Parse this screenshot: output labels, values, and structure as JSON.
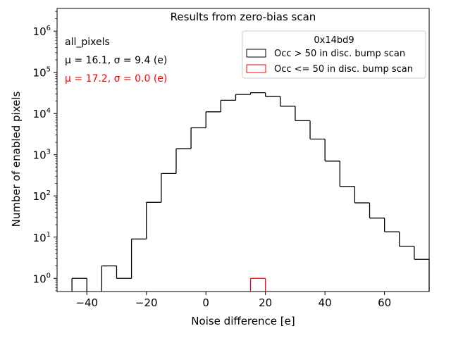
{
  "chart_data": {
    "type": "histogram",
    "title": "Results from zero-bias scan",
    "xlabel": "Noise difference [e]",
    "ylabel": "Number of enabled pixels",
    "xlim": [
      -50,
      75
    ],
    "ylim_log10": [
      -0.32,
      6.55
    ],
    "yscale": "log",
    "x_ticks": [
      -40,
      -20,
      0,
      20,
      40,
      60
    ],
    "x_tick_labels": [
      "−40",
      "−20",
      "0",
      "20",
      "40",
      "60"
    ],
    "y_ticks_exp": [
      0,
      1,
      2,
      3,
      4,
      5,
      6
    ],
    "y_tick_base": "10",
    "annotations": [
      {
        "text": "all_pixels",
        "color": "#000000"
      },
      {
        "text": "μ = 16.1, σ = 9.4 (e)",
        "color": "#000000"
      },
      {
        "text": "μ = 17.2, σ = 0.0 (e)",
        "color": "#ff0000"
      }
    ],
    "legend": {
      "title": "0x14bd9",
      "placement": "top-right",
      "entries": [
        "Occ > 50 in disc. bump scan",
        "Occ <= 50 in disc. bump scan"
      ]
    },
    "series": [
      {
        "name": "Occ > 50 in disc. bump scan",
        "color": "#000000",
        "bins": [
          {
            "x0": -45,
            "x1": -40,
            "value": 1
          },
          {
            "x0": -40,
            "x1": -35,
            "value": 0
          },
          {
            "x0": -35,
            "x1": -30,
            "value": 2
          },
          {
            "x0": -30,
            "x1": -25,
            "value": 1
          },
          {
            "x0": -25,
            "x1": -20,
            "value": 9
          },
          {
            "x0": -20,
            "x1": -15,
            "value": 70
          },
          {
            "x0": -15,
            "x1": -10,
            "value": 350
          },
          {
            "x0": -10,
            "x1": -5,
            "value": 1400
          },
          {
            "x0": -5,
            "x1": 0,
            "value": 4500
          },
          {
            "x0": 0,
            "x1": 5,
            "value": 11000
          },
          {
            "x0": 5,
            "x1": 10,
            "value": 21000
          },
          {
            "x0": 10,
            "x1": 15,
            "value": 29000
          },
          {
            "x0": 15,
            "x1": 20,
            "value": 32000
          },
          {
            "x0": 20,
            "x1": 25,
            "value": 26000
          },
          {
            "x0": 25,
            "x1": 30,
            "value": 15000
          },
          {
            "x0": 30,
            "x1": 35,
            "value": 6700
          },
          {
            "x0": 35,
            "x1": 40,
            "value": 2400
          },
          {
            "x0": 40,
            "x1": 45,
            "value": 700
          },
          {
            "x0": 45,
            "x1": 50,
            "value": 170
          },
          {
            "x0": 50,
            "x1": 55,
            "value": 68
          },
          {
            "x0": 55,
            "x1": 60,
            "value": 29
          },
          {
            "x0": 60,
            "x1": 65,
            "value": 13.5
          },
          {
            "x0": 65,
            "x1": 70,
            "value": 6
          },
          {
            "x0": 70,
            "x1": 75,
            "value": 2.9
          }
        ]
      },
      {
        "name": "Occ <= 50 in disc. bump scan",
        "color": "#ff0000",
        "bins": [
          {
            "x0": 15,
            "x1": 20,
            "value": 1
          }
        ]
      }
    ]
  }
}
